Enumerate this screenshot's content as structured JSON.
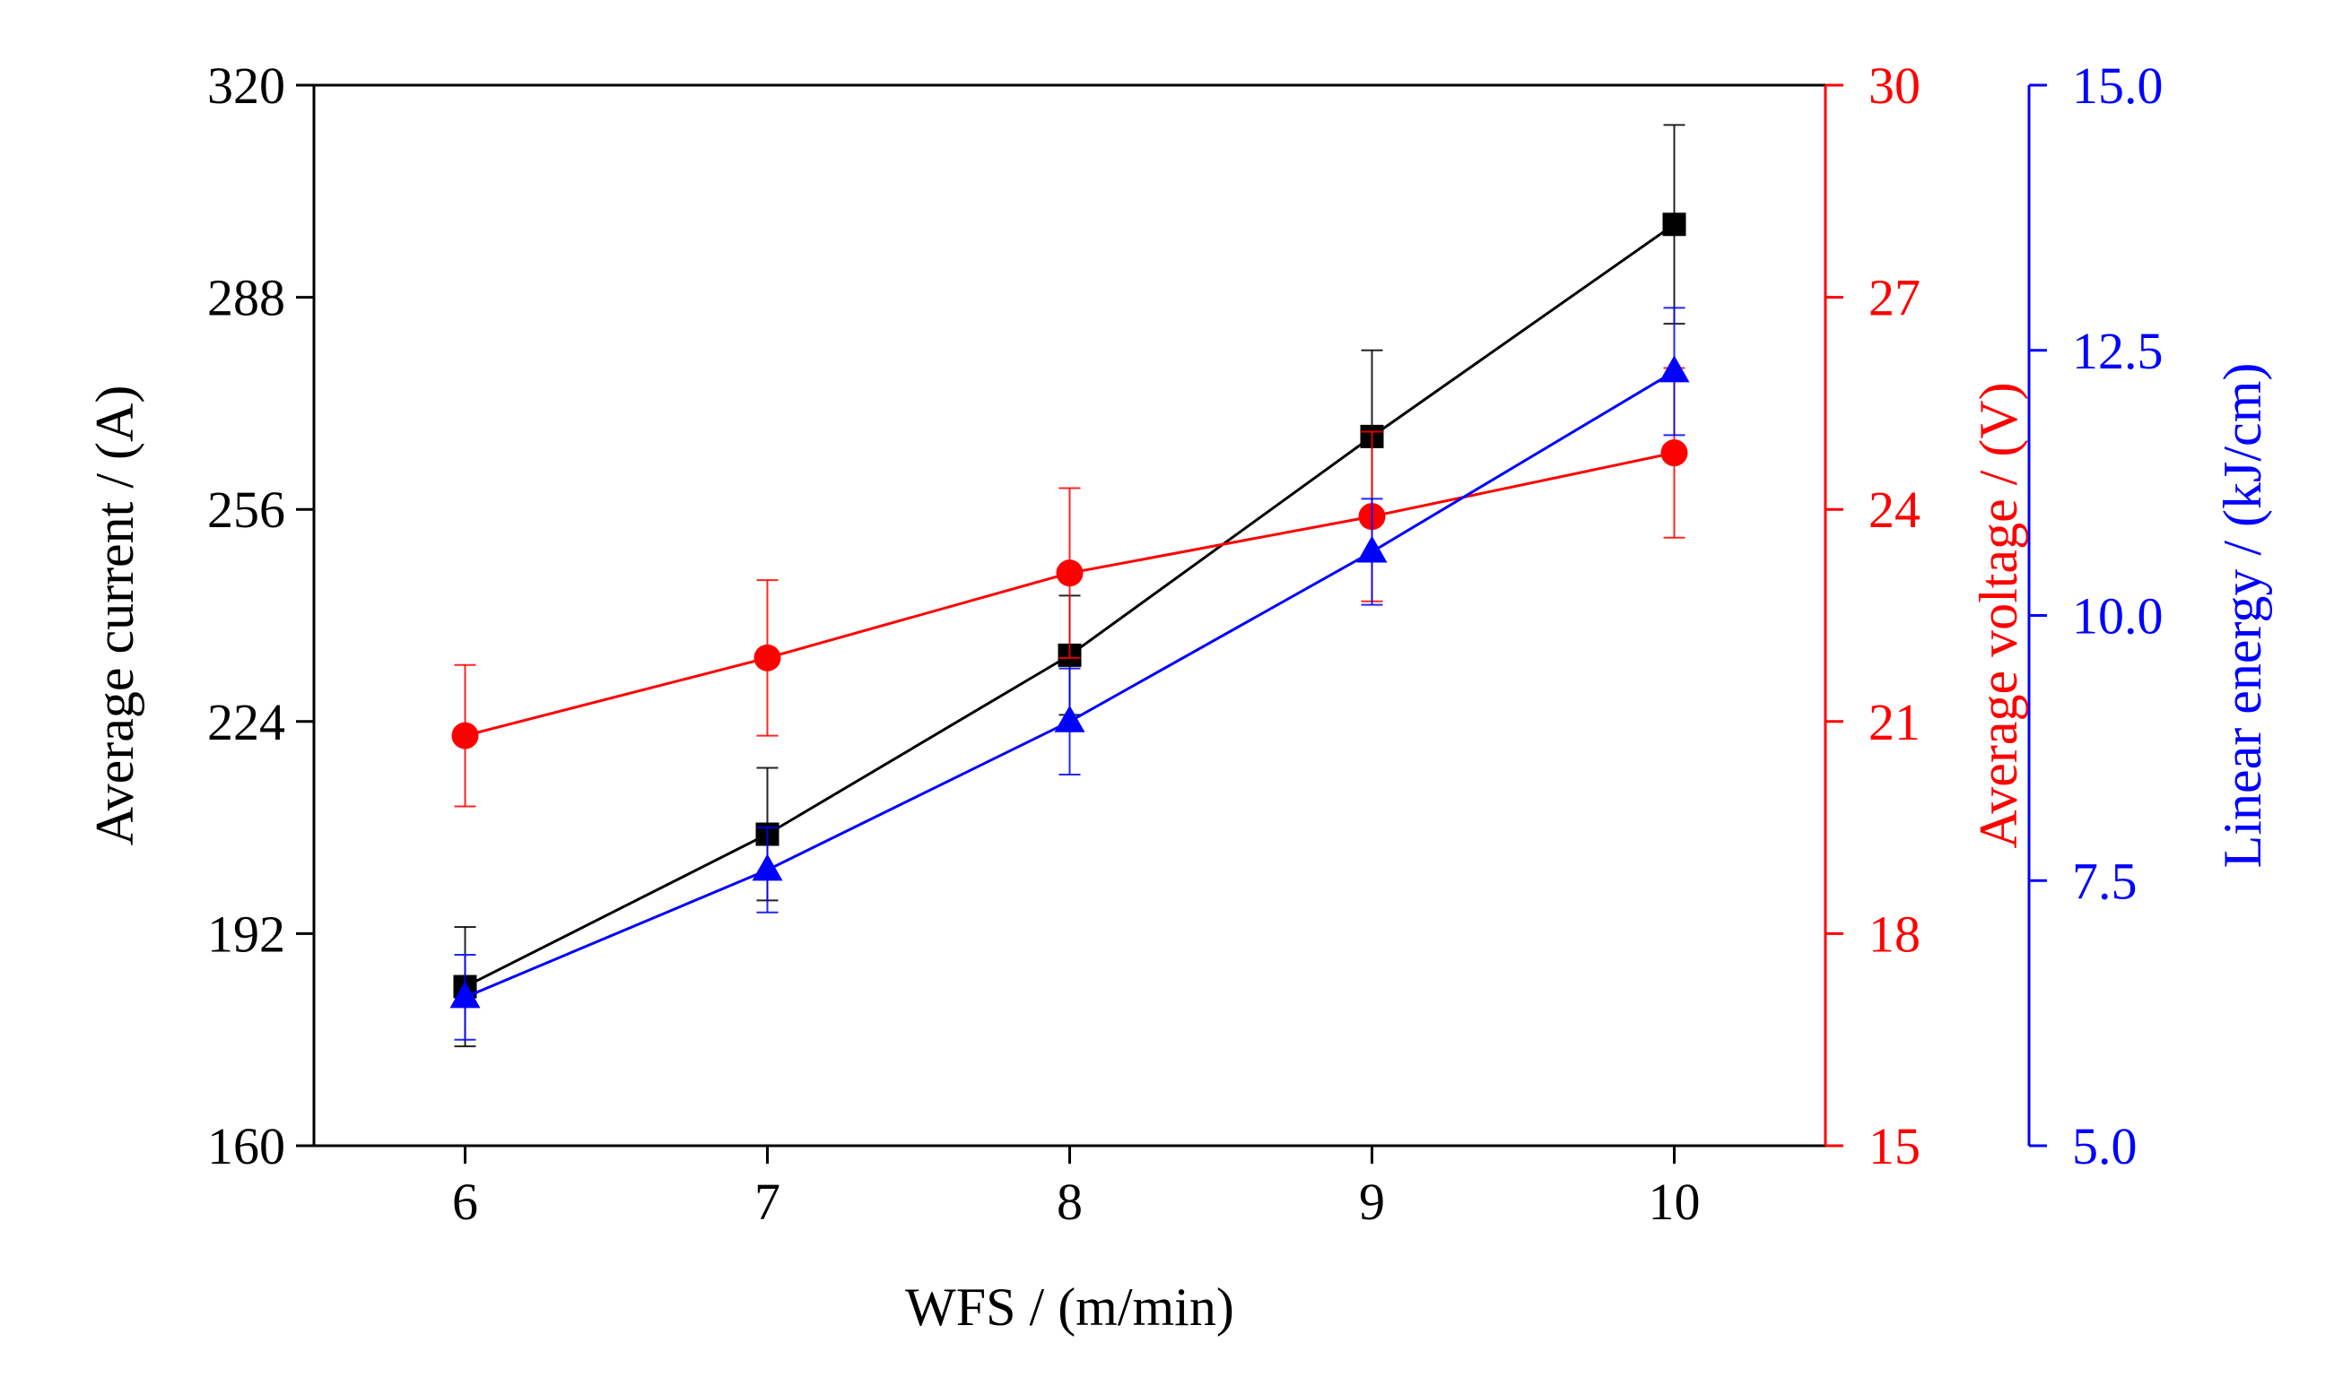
{
  "chart_data": {
    "type": "line",
    "title": "",
    "xlabel": "WFS / (m/min)",
    "x": [
      6,
      7,
      8,
      9,
      10
    ],
    "xlim": [
      5.5,
      10.5
    ],
    "xticks": [
      6,
      7,
      8,
      9,
      10
    ],
    "axes": {
      "current": {
        "label": "Average current / (A)",
        "range": [
          160,
          320
        ],
        "ticks": [
          "160",
          "192",
          "224",
          "256",
          "288",
          "320"
        ],
        "color": "#000000"
      },
      "voltage": {
        "label": "Average voltage / (V)",
        "range": [
          15,
          30
        ],
        "ticks": [
          "15",
          "18",
          "21",
          "24",
          "27",
          "30"
        ],
        "color": "#ff0000"
      },
      "energy": {
        "label": "Linear energy / (kJ/cm)",
        "range": [
          5.0,
          15.0
        ],
        "ticks": [
          "5.0",
          "7.5",
          "10.0",
          "12.5",
          "15.0"
        ],
        "color": "#0000ff"
      }
    },
    "series": [
      {
        "name": "Average current",
        "axis": "current",
        "marker": "square",
        "color": "#000000",
        "values": [
          184,
          207,
          234,
          267,
          299
        ],
        "errors": [
          9,
          10,
          9,
          13,
          15
        ]
      },
      {
        "name": "Average voltage",
        "axis": "voltage",
        "marker": "circle",
        "color": "#ff0000",
        "values": [
          20.8,
          21.9,
          23.1,
          23.9,
          24.8
        ],
        "errors": [
          1.0,
          1.1,
          1.2,
          1.2,
          1.2
        ]
      },
      {
        "name": "Linear energy",
        "axis": "energy",
        "marker": "triangle",
        "color": "#0000ff",
        "values": [
          6.4,
          7.6,
          9.0,
          10.6,
          12.3
        ],
        "errors": [
          0.4,
          0.4,
          0.5,
          0.5,
          0.6
        ]
      }
    ]
  }
}
